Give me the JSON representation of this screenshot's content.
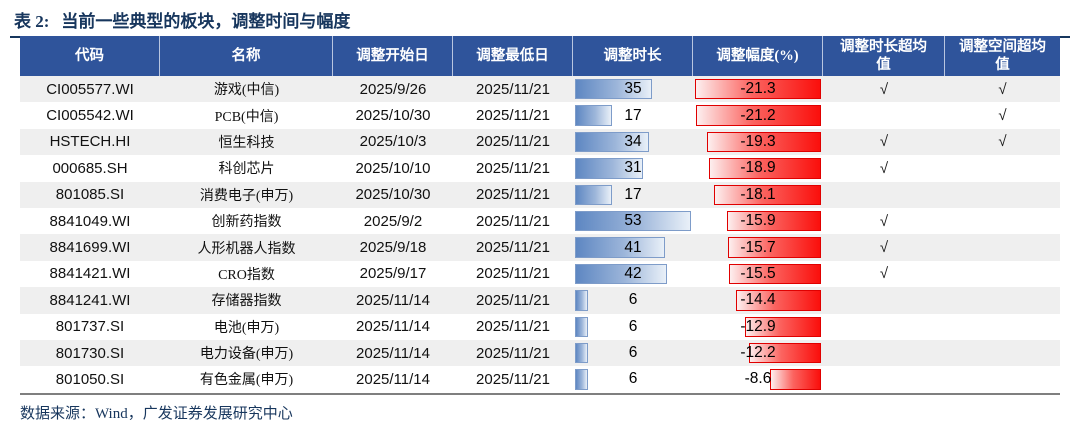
{
  "title": {
    "label": "表 2:",
    "text": "当前一些典型的板块，调整时间与幅度"
  },
  "source": "数据来源：Wind，广发证券发展研究中心",
  "table": {
    "headers": [
      "代码",
      "名称",
      "调整开始日",
      "调整最低日",
      "调整时长",
      "调整幅度(%)",
      "调整时长超均值",
      "调整空间超均值"
    ],
    "check_mark": "√",
    "duration_scale_max": 53,
    "magnitude_scale_max": 21.3,
    "rows": [
      {
        "code": "CI005577.WI",
        "name": "游戏(中信)",
        "start": "2025/9/26",
        "low": "2025/11/21",
        "duration": 35,
        "magnitude": -21.3,
        "duration_exceeds": true,
        "space_exceeds": true
      },
      {
        "code": "CI005542.WI",
        "name": "PCB(中信)",
        "start": "2025/10/30",
        "low": "2025/11/21",
        "duration": 17,
        "magnitude": -21.2,
        "duration_exceeds": false,
        "space_exceeds": true
      },
      {
        "code": "HSTECH.HI",
        "name": "恒生科技",
        "start": "2025/10/3",
        "low": "2025/11/21",
        "duration": 34,
        "magnitude": -19.3,
        "duration_exceeds": true,
        "space_exceeds": true
      },
      {
        "code": "000685.SH",
        "name": "科创芯片",
        "start": "2025/10/10",
        "low": "2025/11/21",
        "duration": 31,
        "magnitude": -18.9,
        "duration_exceeds": true,
        "space_exceeds": false
      },
      {
        "code": "801085.SI",
        "name": "消费电子(申万)",
        "start": "2025/10/30",
        "low": "2025/11/21",
        "duration": 17,
        "magnitude": -18.1,
        "duration_exceeds": false,
        "space_exceeds": false
      },
      {
        "code": "8841049.WI",
        "name": "创新药指数",
        "start": "2025/9/2",
        "low": "2025/11/21",
        "duration": 53,
        "magnitude": -15.9,
        "duration_exceeds": true,
        "space_exceeds": false
      },
      {
        "code": "8841699.WI",
        "name": "人形机器人指数",
        "start": "2025/9/18",
        "low": "2025/11/21",
        "duration": 41,
        "magnitude": -15.7,
        "duration_exceeds": true,
        "space_exceeds": false
      },
      {
        "code": "8841421.WI",
        "name": "CRO指数",
        "start": "2025/9/17",
        "low": "2025/11/21",
        "duration": 42,
        "magnitude": -15.5,
        "duration_exceeds": true,
        "space_exceeds": false
      },
      {
        "code": "8841241.WI",
        "name": "存储器指数",
        "start": "2025/11/14",
        "low": "2025/11/21",
        "duration": 6,
        "magnitude": -14.4,
        "duration_exceeds": false,
        "space_exceeds": false
      },
      {
        "code": "801737.SI",
        "name": "电池(申万)",
        "start": "2025/11/14",
        "low": "2025/11/21",
        "duration": 6,
        "magnitude": -12.9,
        "duration_exceeds": false,
        "space_exceeds": false
      },
      {
        "code": "801730.SI",
        "name": "电力设备(申万)",
        "start": "2025/11/14",
        "low": "2025/11/21",
        "duration": 6,
        "magnitude": -12.2,
        "duration_exceeds": false,
        "space_exceeds": false
      },
      {
        "code": "801050.SI",
        "name": "有色金属(申万)",
        "start": "2025/11/14",
        "low": "2025/11/21",
        "duration": 6,
        "magnitude": -8.6,
        "duration_exceeds": false,
        "space_exceeds": false
      }
    ]
  },
  "colors": {
    "header_bg": "#2F549B",
    "title_text": "#17365D",
    "row_alt_bg": "#EFEFEF",
    "duration_bar_fill": "#5E87C2",
    "duration_bar_border": "#7E9CC9",
    "magnitude_bar_fill": "#FA0F0C",
    "magnitude_bar_border": "#E00000"
  }
}
